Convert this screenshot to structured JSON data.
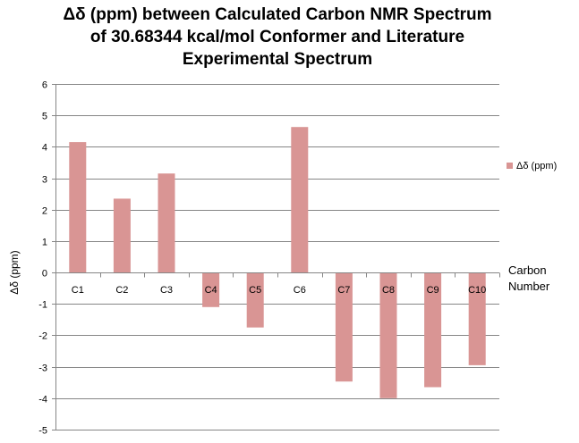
{
  "chart_data": {
    "type": "bar",
    "title_lines": [
      "Δδ (ppm) between Calculated Carbon NMR Spectrum",
      "of 30.68344  kcal/mol Conformer and Literature",
      "Experimental Spectrum"
    ],
    "categories": [
      "C1",
      "C2",
      "C3",
      "C4",
      "C5",
      "C6",
      "C7",
      "C8",
      "C9",
      "C10"
    ],
    "series": [
      {
        "name": "Δδ (ppm)",
        "values": [
          4.15,
          2.35,
          3.15,
          -1.1,
          -1.75,
          4.63,
          -3.47,
          -4.0,
          -3.65,
          -2.95
        ]
      }
    ],
    "ylabel": "Δδ (ppm)",
    "xlabel_lines": [
      "Carbon",
      "Number"
    ],
    "ylim": [
      -5,
      6
    ],
    "yticks": [
      6,
      5,
      4,
      3,
      2,
      1,
      0,
      -1,
      -2,
      -3,
      -4,
      -5
    ],
    "grid": true,
    "legend_position": "right",
    "bar_color": "#D99594",
    "grid_color": "#868686"
  }
}
